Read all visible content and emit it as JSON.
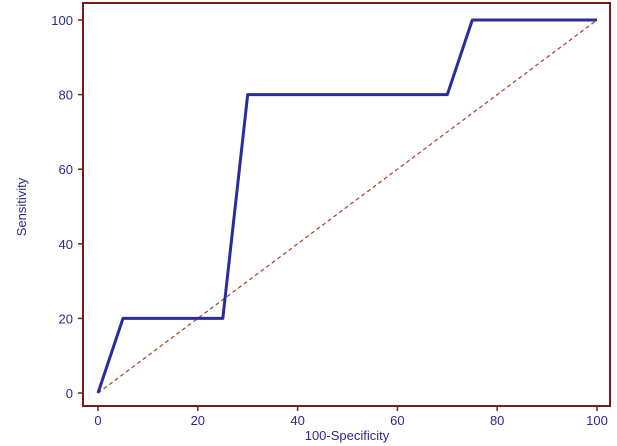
{
  "chart_data": {
    "type": "line",
    "title": "",
    "xlabel": "100-Specificity",
    "ylabel": "Sensitivity",
    "xlim": [
      0,
      100
    ],
    "ylim": [
      0,
      100
    ],
    "x_ticks": [
      0,
      20,
      40,
      60,
      80,
      100
    ],
    "y_ticks": [
      0,
      20,
      40,
      60,
      80,
      100
    ],
    "grid": false,
    "series": [
      {
        "color": "#2b2b9a",
        "style": "solid",
        "points": [
          [
            0,
            0
          ],
          [
            5,
            20
          ],
          [
            25,
            20
          ],
          [
            30,
            80
          ],
          [
            70,
            80
          ],
          [
            75,
            100
          ],
          [
            100,
            100
          ]
        ]
      },
      {
        "color": "#b0483a",
        "style": "dashed",
        "points": [
          [
            0,
            0
          ],
          [
            100,
            100
          ]
        ]
      }
    ],
    "frame_color": "#7a1a14"
  }
}
